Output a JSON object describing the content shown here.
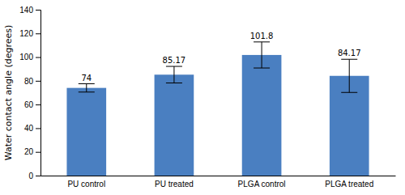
{
  "chart_data": {
    "type": "bar",
    "categories": [
      "PU control",
      "PU treated",
      "PLGA control",
      "PLGA treated"
    ],
    "values": [
      74,
      85.17,
      101.8,
      84.17
    ],
    "errors": [
      3.5,
      7.0,
      11.0,
      14.0
    ],
    "color": "#4a7fc1",
    "ylabel": "Water contact angle (degrees)",
    "ylim": [
      0,
      140
    ],
    "yticks": [
      0,
      20,
      40,
      60,
      80,
      100,
      120,
      140
    ],
    "data_labels": true,
    "grid": false
  }
}
